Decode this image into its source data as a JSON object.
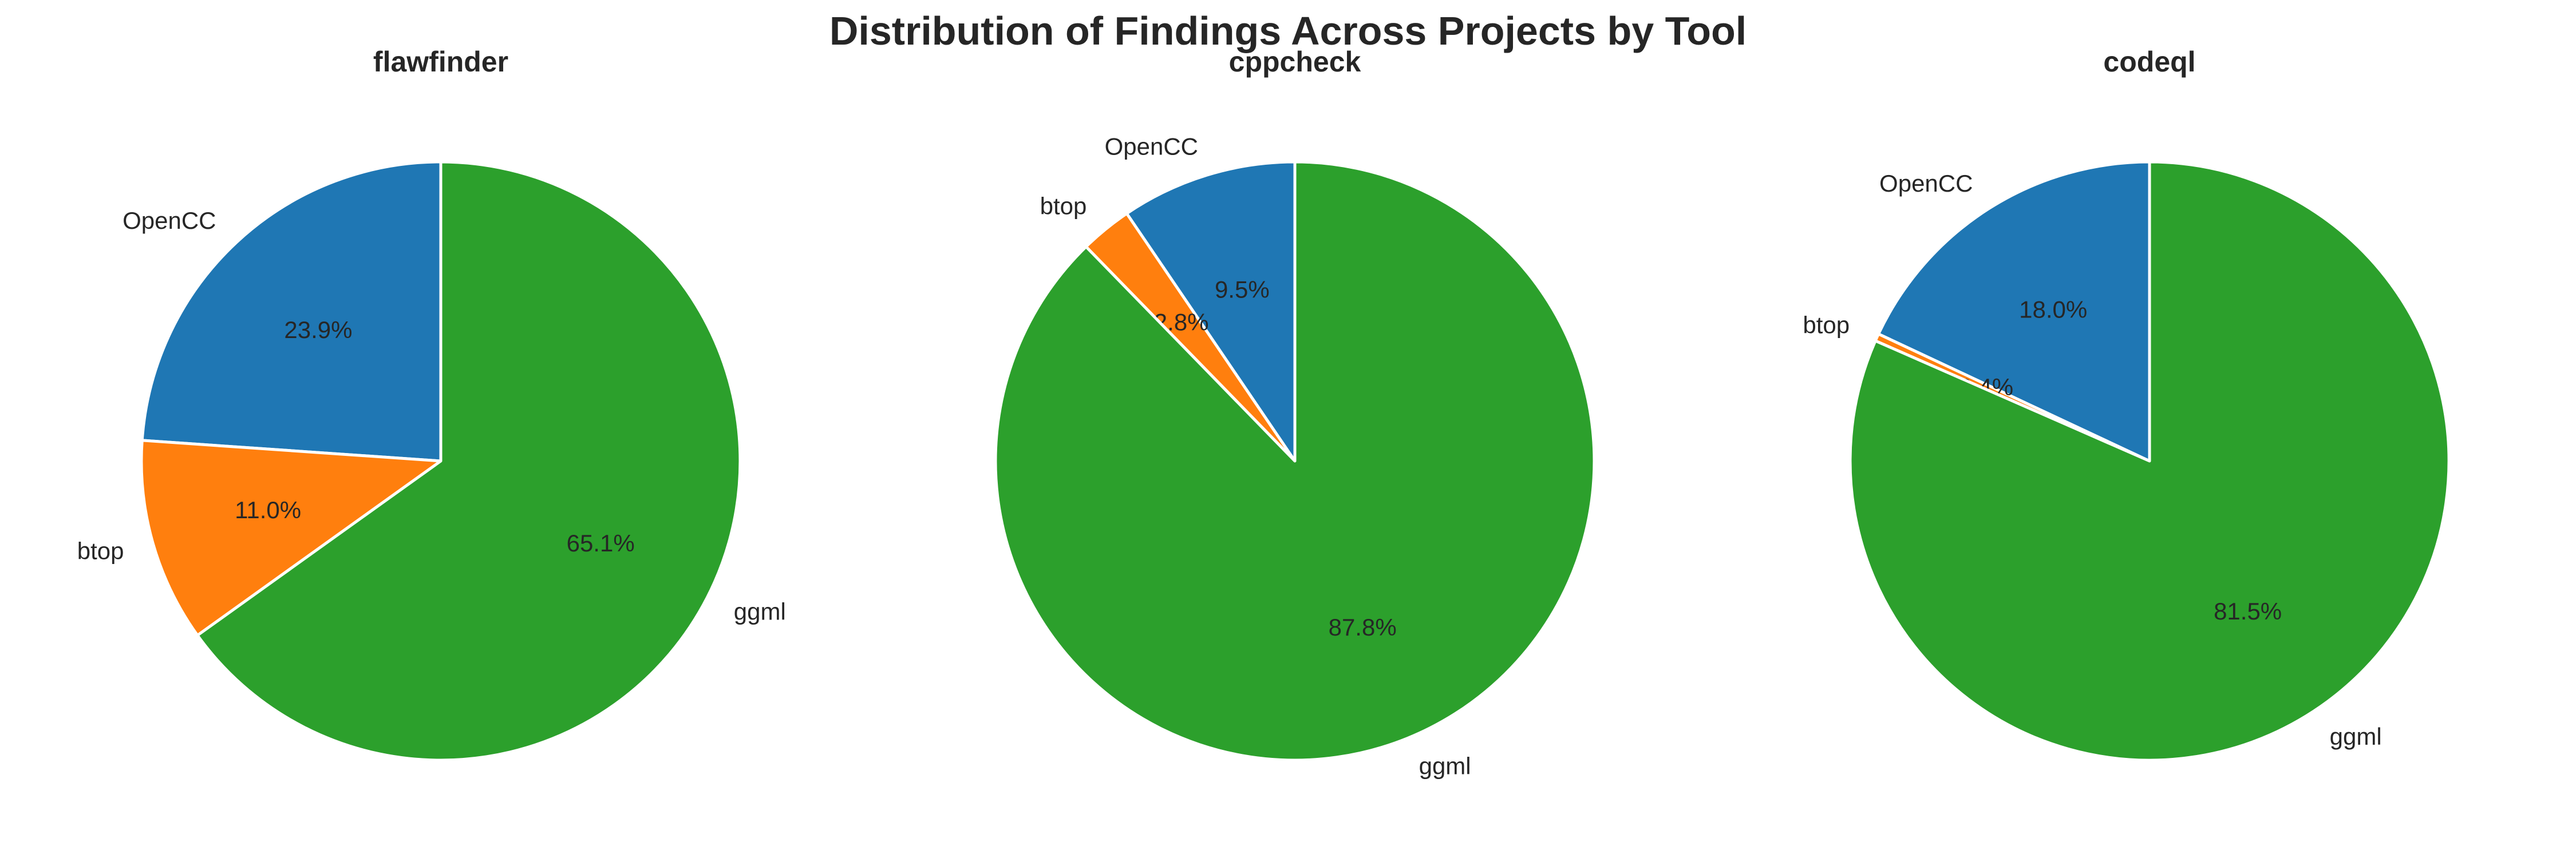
{
  "title": "Distribution of Findings Across Projects by Tool",
  "colors": {
    "OpenCC": "#1f77b4",
    "btop": "#ff7f0e",
    "ggml": "#2ca02c"
  },
  "chart_data": [
    {
      "type": "pie",
      "title": "flawfinder",
      "labels": [
        "OpenCC",
        "btop",
        "ggml"
      ],
      "values": [
        23.9,
        11.0,
        65.1
      ],
      "value_labels": [
        "23.9%",
        "11.0%",
        "65.1%"
      ],
      "colors": [
        "#1f77b4",
        "#ff7f0e",
        "#2ca02c"
      ],
      "start_angle_deg": 90,
      "direction": "counterclockwise"
    },
    {
      "type": "pie",
      "title": "cppcheck",
      "labels": [
        "OpenCC",
        "btop",
        "ggml"
      ],
      "values": [
        9.5,
        2.8,
        87.8
      ],
      "value_labels": [
        "9.5%",
        "2.8%",
        "87.8%"
      ],
      "colors": [
        "#1f77b4",
        "#ff7f0e",
        "#2ca02c"
      ],
      "start_angle_deg": 90,
      "direction": "counterclockwise"
    },
    {
      "type": "pie",
      "title": "codeql",
      "labels": [
        "OpenCC",
        "btop",
        "ggml"
      ],
      "values": [
        18.0,
        0.4,
        81.5
      ],
      "value_labels": [
        "18.0%",
        "0.4%",
        "81.5%"
      ],
      "colors": [
        "#1f77b4",
        "#ff7f0e",
        "#2ca02c"
      ],
      "start_angle_deg": 90,
      "direction": "counterclockwise"
    }
  ]
}
